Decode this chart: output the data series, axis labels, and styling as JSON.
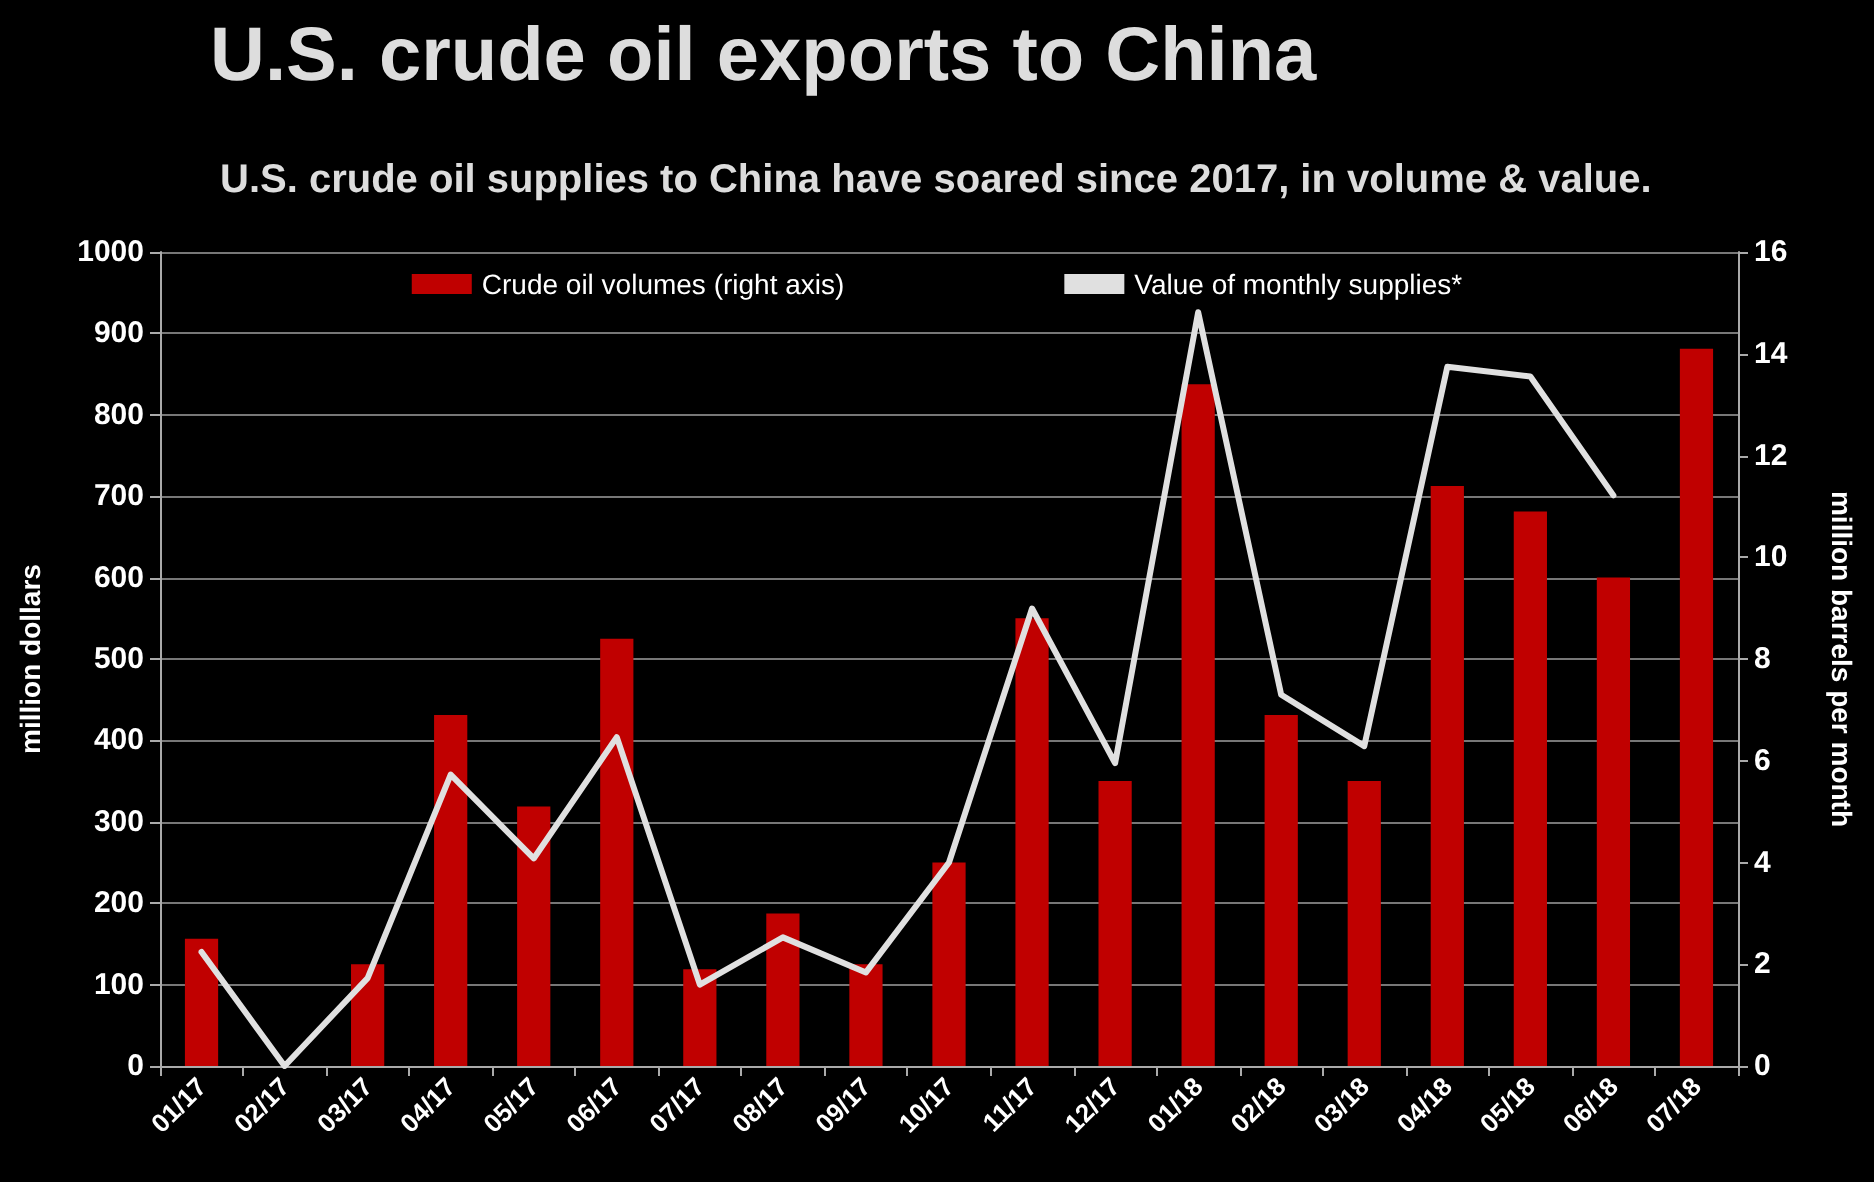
{
  "chart_data": {
    "type": "bar",
    "title": "U.S. crude oil exports to China",
    "subtitle": "U.S. crude oil supplies to China have soared since 2017, in volume & value.",
    "ylabel": "million dollars",
    "y2label": "million barrels per month",
    "categories": [
      "01/17",
      "02/17",
      "03/17",
      "04/17",
      "05/17",
      "06/17",
      "07/17",
      "08/17",
      "09/17",
      "10/17",
      "11/17",
      "12/17",
      "01/18",
      "02/18",
      "03/18",
      "04/18",
      "05/18",
      "06/18",
      "07/18"
    ],
    "series": [
      {
        "name": "Crude oil volumes (right axis)",
        "axis": "y2",
        "color": "#c00000",
        "values": [
          2.5,
          null,
          2.0,
          6.9,
          5.1,
          8.4,
          1.9,
          3.0,
          2.0,
          4.0,
          8.8,
          5.6,
          13.4,
          6.9,
          5.6,
          11.4,
          10.9,
          9.6,
          14.1
        ]
      },
      {
        "name": "Value of monthly supplies*",
        "type": "line",
        "color": "#e0e0e0",
        "values": [
          140,
          0,
          108,
          358,
          255,
          404,
          100,
          158,
          115,
          250,
          562,
          372,
          926,
          456,
          393,
          859,
          847,
          701,
          null
        ]
      }
    ],
    "ylim": [
      0,
      1000
    ],
    "yticks": [
      0,
      100,
      200,
      300,
      400,
      500,
      600,
      700,
      800,
      900,
      1000
    ],
    "y2lim": [
      0,
      16
    ],
    "y2ticks": [
      0,
      2,
      4,
      6,
      8,
      10,
      12,
      14,
      16
    ],
    "grid": "y",
    "legend": "top",
    "marker": "none",
    "line_style": "solid"
  }
}
